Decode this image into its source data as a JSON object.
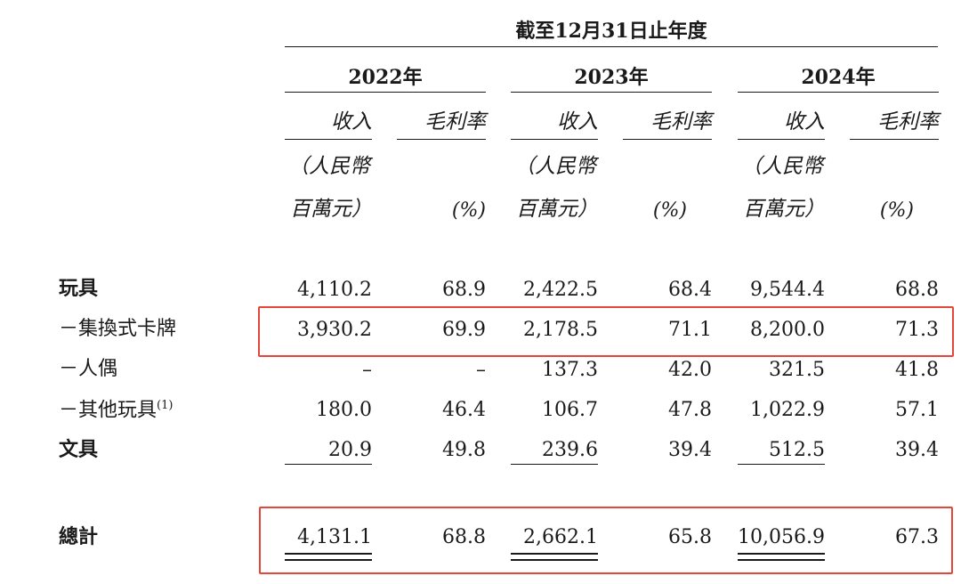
{
  "table": {
    "period_header": "截至12月31日止年度",
    "years": [
      "2022年",
      "2023年",
      "2024年"
    ],
    "col_revenue": "收入",
    "col_margin": "毛利率",
    "unit_revenue_line1": "（人民幣",
    "unit_revenue_line2": "百萬元）",
    "unit_margin": "(%)",
    "rows": [
      {
        "label": "玩具",
        "values": [
          "4,110.2",
          "68.9",
          "2,422.5",
          "68.4",
          "9,544.4",
          "68.8"
        ]
      },
      {
        "label": "－集換式卡牌",
        "values": [
          "3,930.2",
          "69.9",
          "2,178.5",
          "71.1",
          "8,200.0",
          "71.3"
        ]
      },
      {
        "label": "－人偶",
        "values": [
          "–",
          "–",
          "137.3",
          "42.0",
          "321.5",
          "41.8"
        ]
      },
      {
        "label": "－其他玩具",
        "footnote": "(1)",
        "values": [
          "180.0",
          "46.4",
          "106.7",
          "47.8",
          "1,022.9",
          "57.1"
        ]
      },
      {
        "label": "文具",
        "values": [
          "20.9",
          "49.8",
          "239.6",
          "39.4",
          "512.5",
          "39.4"
        ]
      }
    ],
    "total": {
      "label": "總計",
      "values": [
        "4,131.1",
        "68.8",
        "2,662.1",
        "65.8",
        "10,056.9",
        "67.3"
      ]
    }
  },
  "colors": {
    "highlight": "#e5463a",
    "text": "#1a1a1a"
  }
}
